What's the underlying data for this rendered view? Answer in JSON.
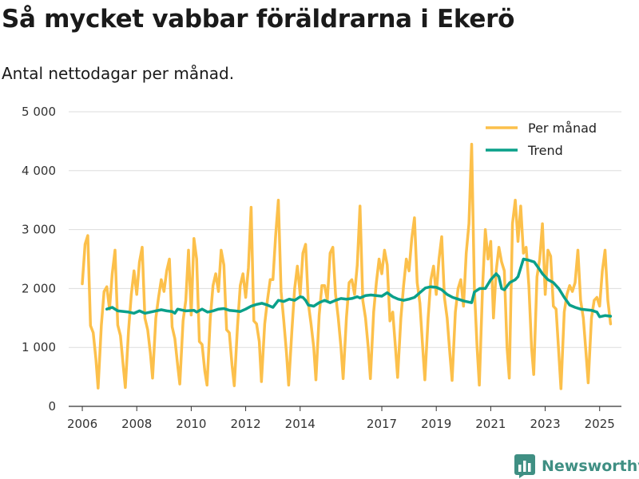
{
  "title": "Så mycket vabbar föräldrarna i Ekerö",
  "subtitle": "Antal nettodagar per månad.",
  "brand": {
    "name": "Newsworthy",
    "icon": "newsworthy-logo-icon",
    "color": "#3f8f83"
  },
  "colors": {
    "per_month": "#fcc04b",
    "trend": "#0aa08a",
    "grid": "#dddddd",
    "axis": "#333333"
  },
  "chart_data": {
    "type": "line",
    "ylim": [
      0,
      5000
    ],
    "yticks": [
      0,
      1000,
      2000,
      3000,
      4000,
      5000
    ],
    "ytick_labels": [
      "0",
      "1 000",
      "2 000",
      "3 000",
      "4 000",
      "5 000"
    ],
    "xlim": [
      2005.5,
      2025.8
    ],
    "xticks": [
      2006,
      2008,
      2010,
      2012,
      2014,
      2017,
      2019,
      2021,
      2023,
      2025
    ],
    "xtick_labels": [
      "2006",
      "2008",
      "2010",
      "2012",
      "2014",
      "2017",
      "2019",
      "2021",
      "2023",
      "2025"
    ],
    "grid": true,
    "legend_position": "top-right",
    "series": [
      {
        "name": "Per månad",
        "color": "#fcc04b",
        "points": [
          [
            2006.0,
            2080
          ],
          [
            2006.1,
            2750
          ],
          [
            2006.2,
            2900
          ],
          [
            2006.3,
            1370
          ],
          [
            2006.4,
            1250
          ],
          [
            2006.5,
            800
          ],
          [
            2006.58,
            310
          ],
          [
            2006.7,
            1380
          ],
          [
            2006.8,
            1950
          ],
          [
            2006.9,
            2030
          ],
          [
            2007.0,
            1650
          ],
          [
            2007.1,
            2250
          ],
          [
            2007.2,
            2650
          ],
          [
            2007.3,
            1380
          ],
          [
            2007.4,
            1200
          ],
          [
            2007.5,
            700
          ],
          [
            2007.58,
            320
          ],
          [
            2007.7,
            1300
          ],
          [
            2007.8,
            1900
          ],
          [
            2007.9,
            2300
          ],
          [
            2008.0,
            1900
          ],
          [
            2008.1,
            2450
          ],
          [
            2008.2,
            2700
          ],
          [
            2008.3,
            1500
          ],
          [
            2008.4,
            1300
          ],
          [
            2008.5,
            900
          ],
          [
            2008.58,
            480
          ],
          [
            2008.7,
            1500
          ],
          [
            2008.8,
            1850
          ],
          [
            2008.9,
            2150
          ],
          [
            2009.0,
            1950
          ],
          [
            2009.1,
            2300
          ],
          [
            2009.2,
            2500
          ],
          [
            2009.3,
            1350
          ],
          [
            2009.4,
            1150
          ],
          [
            2009.5,
            700
          ],
          [
            2009.58,
            380
          ],
          [
            2009.7,
            1450
          ],
          [
            2009.8,
            1800
          ],
          [
            2009.9,
            2650
          ],
          [
            2010.0,
            1550
          ],
          [
            2010.1,
            2850
          ],
          [
            2010.2,
            2500
          ],
          [
            2010.3,
            1100
          ],
          [
            2010.4,
            1050
          ],
          [
            2010.5,
            600
          ],
          [
            2010.58,
            360
          ],
          [
            2010.7,
            1500
          ],
          [
            2010.8,
            2050
          ],
          [
            2010.9,
            2250
          ],
          [
            2011.0,
            1950
          ],
          [
            2011.1,
            2650
          ],
          [
            2011.2,
            2400
          ],
          [
            2011.3,
            1300
          ],
          [
            2011.4,
            1250
          ],
          [
            2011.5,
            700
          ],
          [
            2011.58,
            350
          ],
          [
            2011.7,
            1350
          ],
          [
            2011.8,
            2050
          ],
          [
            2011.9,
            2250
          ],
          [
            2012.0,
            1850
          ],
          [
            2012.1,
            2350
          ],
          [
            2012.2,
            3380
          ],
          [
            2012.3,
            1450
          ],
          [
            2012.4,
            1400
          ],
          [
            2012.5,
            1100
          ],
          [
            2012.58,
            420
          ],
          [
            2012.7,
            1400
          ],
          [
            2012.8,
            1800
          ],
          [
            2012.9,
            2150
          ],
          [
            2013.0,
            2150
          ],
          [
            2013.1,
            2900
          ],
          [
            2013.2,
            3500
          ],
          [
            2013.3,
            1950
          ],
          [
            2013.4,
            1450
          ],
          [
            2013.5,
            900
          ],
          [
            2013.58,
            360
          ],
          [
            2013.7,
            1300
          ],
          [
            2013.8,
            2000
          ],
          [
            2013.9,
            2380
          ],
          [
            2014.0,
            1900
          ],
          [
            2014.1,
            2600
          ],
          [
            2014.2,
            2750
          ],
          [
            2014.3,
            1750
          ],
          [
            2014.4,
            1400
          ],
          [
            2014.5,
            1000
          ],
          [
            2014.58,
            450
          ],
          [
            2014.7,
            1550
          ],
          [
            2014.8,
            2050
          ],
          [
            2014.9,
            2050
          ],
          [
            2015.0,
            1800
          ],
          [
            2015.1,
            2600
          ],
          [
            2015.2,
            2700
          ],
          [
            2015.3,
            1900
          ],
          [
            2015.4,
            1500
          ],
          [
            2015.5,
            1000
          ],
          [
            2015.58,
            470
          ],
          [
            2015.7,
            1500
          ],
          [
            2015.8,
            2100
          ],
          [
            2015.9,
            2150
          ],
          [
            2016.0,
            1900
          ],
          [
            2016.1,
            2400
          ],
          [
            2016.2,
            3400
          ],
          [
            2016.3,
            1800
          ],
          [
            2016.4,
            1500
          ],
          [
            2016.5,
            1000
          ],
          [
            2016.58,
            470
          ],
          [
            2016.7,
            1600
          ],
          [
            2016.8,
            2100
          ],
          [
            2016.9,
            2500
          ],
          [
            2017.0,
            2250
          ],
          [
            2017.1,
            2650
          ],
          [
            2017.2,
            2400
          ],
          [
            2017.3,
            1450
          ],
          [
            2017.4,
            1600
          ],
          [
            2017.5,
            1000
          ],
          [
            2017.58,
            490
          ],
          [
            2017.7,
            1500
          ],
          [
            2017.8,
            2050
          ],
          [
            2017.9,
            2500
          ],
          [
            2018.0,
            2300
          ],
          [
            2018.1,
            2850
          ],
          [
            2018.2,
            3200
          ],
          [
            2018.3,
            2100
          ],
          [
            2018.4,
            1750
          ],
          [
            2018.5,
            1000
          ],
          [
            2018.58,
            450
          ],
          [
            2018.7,
            1500
          ],
          [
            2018.8,
            2150
          ],
          [
            2018.9,
            2380
          ],
          [
            2019.0,
            1900
          ],
          [
            2019.1,
            2500
          ],
          [
            2019.2,
            2880
          ],
          [
            2019.3,
            1850
          ],
          [
            2019.4,
            1500
          ],
          [
            2019.5,
            900
          ],
          [
            2019.58,
            440
          ],
          [
            2019.7,
            1600
          ],
          [
            2019.8,
            2000
          ],
          [
            2019.9,
            2150
          ],
          [
            2020.0,
            1700
          ],
          [
            2020.1,
            2600
          ],
          [
            2020.2,
            3100
          ],
          [
            2020.3,
            4450
          ],
          [
            2020.4,
            2000
          ],
          [
            2020.5,
            1000
          ],
          [
            2020.58,
            360
          ],
          [
            2020.7,
            2000
          ],
          [
            2020.8,
            3000
          ],
          [
            2020.9,
            2500
          ],
          [
            2021.0,
            2800
          ],
          [
            2021.1,
            1500
          ],
          [
            2021.2,
            2300
          ],
          [
            2021.3,
            2700
          ],
          [
            2021.4,
            2450
          ],
          [
            2021.5,
            2300
          ],
          [
            2021.6,
            1000
          ],
          [
            2021.68,
            480
          ],
          [
            2021.8,
            3100
          ],
          [
            2021.9,
            3500
          ],
          [
            2022.0,
            2800
          ],
          [
            2022.1,
            3400
          ],
          [
            2022.2,
            2600
          ],
          [
            2022.3,
            2700
          ],
          [
            2022.4,
            2050
          ],
          [
            2022.5,
            1000
          ],
          [
            2022.58,
            540
          ],
          [
            2022.7,
            2200
          ],
          [
            2022.8,
            2500
          ],
          [
            2022.9,
            3100
          ],
          [
            2023.0,
            1900
          ],
          [
            2023.1,
            2650
          ],
          [
            2023.2,
            2550
          ],
          [
            2023.3,
            1700
          ],
          [
            2023.4,
            1650
          ],
          [
            2023.5,
            900
          ],
          [
            2023.58,
            300
          ],
          [
            2023.7,
            1600
          ],
          [
            2023.8,
            1900
          ],
          [
            2023.9,
            2050
          ],
          [
            2024.0,
            1950
          ],
          [
            2024.1,
            2100
          ],
          [
            2024.2,
            2650
          ],
          [
            2024.3,
            1800
          ],
          [
            2024.4,
            1500
          ],
          [
            2024.5,
            900
          ],
          [
            2024.58,
            400
          ],
          [
            2024.7,
            1500
          ],
          [
            2024.8,
            1800
          ],
          [
            2024.9,
            1850
          ],
          [
            2025.0,
            1700
          ],
          [
            2025.1,
            2300
          ],
          [
            2025.2,
            2650
          ],
          [
            2025.3,
            1800
          ],
          [
            2025.4,
            1400
          ]
        ]
      },
      {
        "name": "Trend",
        "color": "#0aa08a",
        "points": [
          [
            2006.9,
            1650
          ],
          [
            2007.1,
            1680
          ],
          [
            2007.3,
            1620
          ],
          [
            2007.7,
            1600
          ],
          [
            2007.9,
            1580
          ],
          [
            2008.1,
            1620
          ],
          [
            2008.3,
            1580
          ],
          [
            2008.5,
            1600
          ],
          [
            2008.9,
            1640
          ],
          [
            2009.1,
            1620
          ],
          [
            2009.3,
            1610
          ],
          [
            2009.4,
            1580
          ],
          [
            2009.5,
            1650
          ],
          [
            2009.8,
            1620
          ],
          [
            2010.1,
            1630
          ],
          [
            2010.2,
            1600
          ],
          [
            2010.4,
            1650
          ],
          [
            2010.6,
            1600
          ],
          [
            2010.8,
            1620
          ],
          [
            2011.0,
            1650
          ],
          [
            2011.2,
            1660
          ],
          [
            2011.4,
            1630
          ],
          [
            2011.6,
            1620
          ],
          [
            2011.8,
            1610
          ],
          [
            2012.0,
            1650
          ],
          [
            2012.2,
            1700
          ],
          [
            2012.4,
            1730
          ],
          [
            2012.6,
            1750
          ],
          [
            2012.8,
            1720
          ],
          [
            2013.0,
            1680
          ],
          [
            2013.2,
            1800
          ],
          [
            2013.4,
            1780
          ],
          [
            2013.6,
            1820
          ],
          [
            2013.8,
            1800
          ],
          [
            2014.0,
            1860
          ],
          [
            2014.1,
            1850
          ],
          [
            2014.2,
            1800
          ],
          [
            2014.3,
            1720
          ],
          [
            2014.5,
            1700
          ],
          [
            2014.7,
            1760
          ],
          [
            2014.9,
            1800
          ],
          [
            2015.1,
            1760
          ],
          [
            2015.3,
            1800
          ],
          [
            2015.5,
            1830
          ],
          [
            2015.7,
            1820
          ],
          [
            2015.9,
            1830
          ],
          [
            2016.1,
            1860
          ],
          [
            2016.2,
            1840
          ],
          [
            2016.4,
            1880
          ],
          [
            2016.6,
            1890
          ],
          [
            2016.8,
            1880
          ],
          [
            2017.0,
            1870
          ],
          [
            2017.2,
            1930
          ],
          [
            2017.4,
            1860
          ],
          [
            2017.6,
            1820
          ],
          [
            2017.8,
            1800
          ],
          [
            2018.0,
            1820
          ],
          [
            2018.2,
            1850
          ],
          [
            2018.4,
            1930
          ],
          [
            2018.6,
            2010
          ],
          [
            2018.8,
            2030
          ],
          [
            2019.0,
            2020
          ],
          [
            2019.2,
            1980
          ],
          [
            2019.4,
            1900
          ],
          [
            2019.6,
            1850
          ],
          [
            2019.8,
            1820
          ],
          [
            2020.0,
            1790
          ],
          [
            2020.2,
            1770
          ],
          [
            2020.3,
            1760
          ],
          [
            2020.4,
            1940
          ],
          [
            2020.6,
            2000
          ],
          [
            2020.8,
            2000
          ],
          [
            2021.0,
            2150
          ],
          [
            2021.2,
            2250
          ],
          [
            2021.3,
            2200
          ],
          [
            2021.4,
            2000
          ],
          [
            2021.5,
            1980
          ],
          [
            2021.7,
            2100
          ],
          [
            2021.9,
            2150
          ],
          [
            2022.0,
            2200
          ],
          [
            2022.1,
            2350
          ],
          [
            2022.2,
            2500
          ],
          [
            2022.4,
            2480
          ],
          [
            2022.6,
            2450
          ],
          [
            2022.8,
            2320
          ],
          [
            2022.9,
            2250
          ],
          [
            2023.1,
            2150
          ],
          [
            2023.3,
            2100
          ],
          [
            2023.5,
            2000
          ],
          [
            2023.7,
            1850
          ],
          [
            2023.9,
            1720
          ],
          [
            2024.1,
            1680
          ],
          [
            2024.3,
            1650
          ],
          [
            2024.5,
            1640
          ],
          [
            2024.7,
            1630
          ],
          [
            2024.9,
            1600
          ],
          [
            2025.0,
            1520
          ],
          [
            2025.2,
            1540
          ],
          [
            2025.4,
            1530
          ]
        ]
      }
    ]
  }
}
